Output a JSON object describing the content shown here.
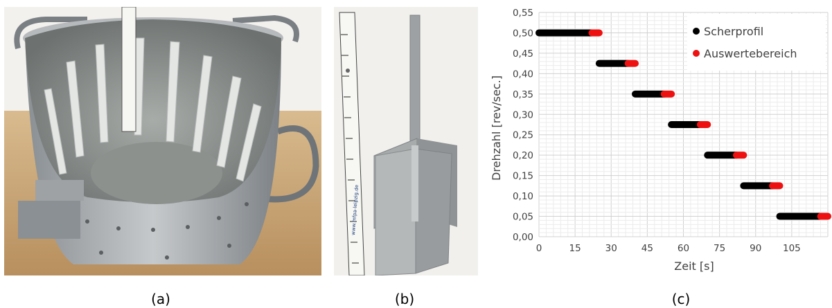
{
  "captions": {
    "a": "(a)",
    "b": "(b)",
    "c": "(c)"
  },
  "photo_b": {
    "ruler_text": "www.mfpa-leipzig.de"
  },
  "chart_data": {
    "type": "scatter",
    "xlabel": "Zeit [s]",
    "ylabel": "Drehzahl [rev/sec.]",
    "xlim": [
      0,
      120
    ],
    "ylim": [
      0,
      0.55
    ],
    "x_ticks": [
      "0",
      "15",
      "30",
      "45",
      "60",
      "75",
      "90",
      "105"
    ],
    "y_ticks": [
      "0,00",
      "0,05",
      "0,10",
      "0,15",
      "0,20",
      "0,25",
      "0,30",
      "0,35",
      "0,40",
      "0,45",
      "0,50",
      "0,55"
    ],
    "grid": true,
    "legend_position": "top-right",
    "series": [
      {
        "name": "Scherprofil",
        "color": "#000000",
        "segments": [
          {
            "x": [
              0,
              22
            ],
            "y": 0.5
          },
          {
            "x": [
              25,
              37
            ],
            "y": 0.425
          },
          {
            "x": [
              40,
              52
            ],
            "y": 0.35
          },
          {
            "x": [
              55,
              67
            ],
            "y": 0.275
          },
          {
            "x": [
              70,
              82
            ],
            "y": 0.2
          },
          {
            "x": [
              85,
              97
            ],
            "y": 0.125
          },
          {
            "x": [
              100,
              118
            ],
            "y": 0.05
          }
        ]
      },
      {
        "name": "Auswertebereich",
        "color": "#ee1111",
        "segments": [
          {
            "x": [
              22,
              25
            ],
            "y": 0.5
          },
          {
            "x": [
              37,
              40
            ],
            "y": 0.425
          },
          {
            "x": [
              52,
              55
            ],
            "y": 0.35
          },
          {
            "x": [
              67,
              70
            ],
            "y": 0.275
          },
          {
            "x": [
              82,
              85
            ],
            "y": 0.2
          },
          {
            "x": [
              97,
              100
            ],
            "y": 0.125
          },
          {
            "x": [
              117,
              120
            ],
            "y": 0.05
          }
        ]
      }
    ]
  }
}
